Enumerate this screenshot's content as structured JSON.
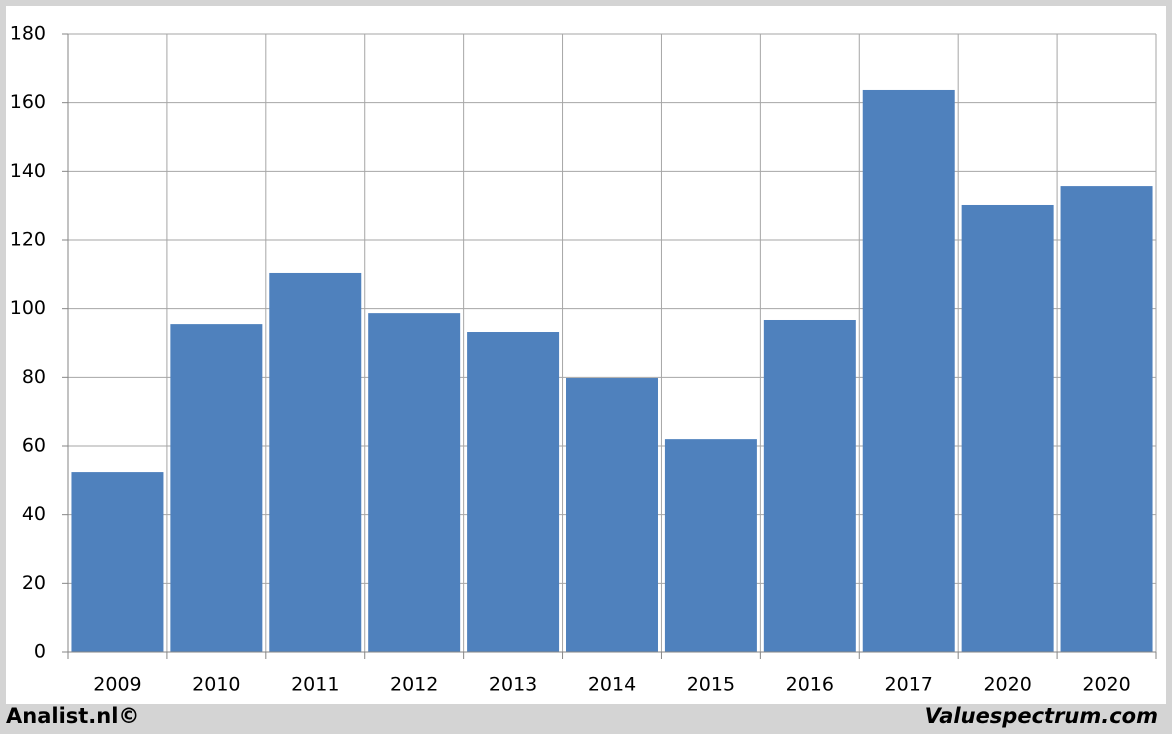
{
  "chart_data": {
    "type": "bar",
    "categories": [
      "2009",
      "2010",
      "2011",
      "2012",
      "2013",
      "2014",
      "2015",
      "2016",
      "2017",
      "2020",
      "2020"
    ],
    "values": [
      52.4,
      95.5,
      110.4,
      98.7,
      93.2,
      79.8,
      62,
      96.7,
      163.7,
      130.2,
      135.7
    ],
    "color": "#4f81bd",
    "ylim": [
      0,
      180
    ],
    "yticks": [
      0,
      20,
      40,
      60,
      80,
      100,
      120,
      140,
      160,
      180
    ],
    "grid": true,
    "footer_left": "Analist.nl©",
    "footer_right": "Valuespectrum.com"
  }
}
